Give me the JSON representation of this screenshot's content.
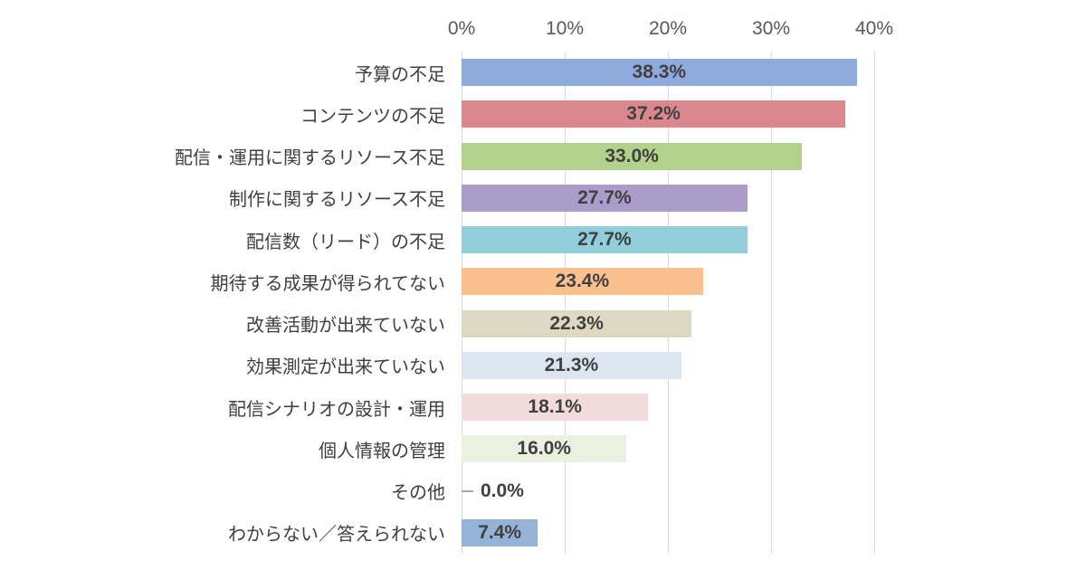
{
  "page": {
    "background": "#ffffff"
  },
  "chart_data": {
    "type": "bar",
    "orientation": "horizontal",
    "title": "",
    "xlabel": "",
    "ylabel": "",
    "xlim": [
      0,
      40
    ],
    "x_tick_labels": [
      "0%",
      "10%",
      "20%",
      "30%",
      "40%"
    ],
    "grid": true,
    "axis_position": "top",
    "categories": [
      "予算の不足",
      "コンテンツの不足",
      "配信・運用に関するリソース不足",
      "制作に関するリソース不足",
      "配信数（リード）の不足",
      "期待する成果が得られてない",
      "改善活動が出来ていない",
      "効果測定が出来ていない",
      "配信シナリオの設計・運用",
      "個人情報の管理",
      "その他",
      "わからない／答えられない"
    ],
    "values": [
      38.3,
      37.2,
      33.0,
      27.7,
      27.7,
      23.4,
      22.3,
      21.3,
      18.1,
      16.0,
      0.0,
      7.4
    ],
    "value_labels": [
      "38.3%",
      "37.2%",
      "33.0%",
      "27.7%",
      "27.7%",
      "23.4%",
      "22.3%",
      "21.3%",
      "18.1%",
      "16.0%",
      "0.0%",
      "7.4%"
    ],
    "bar_colors": [
      "#8faadc",
      "#d9898d",
      "#b2d18a",
      "#ab9cc9",
      "#92cddc",
      "#fabf8f",
      "#ddd9c3",
      "#dce6f1",
      "#f2dcdb",
      "#ebf1de",
      "#a6a6a6",
      "#95b3d7"
    ],
    "colors": {
      "tick_label": "#595959",
      "category_label": "#3f3f3f",
      "value_label": "#404040",
      "gridline": "#d9d9d9",
      "zero_dash": "#a6a6a6"
    }
  }
}
